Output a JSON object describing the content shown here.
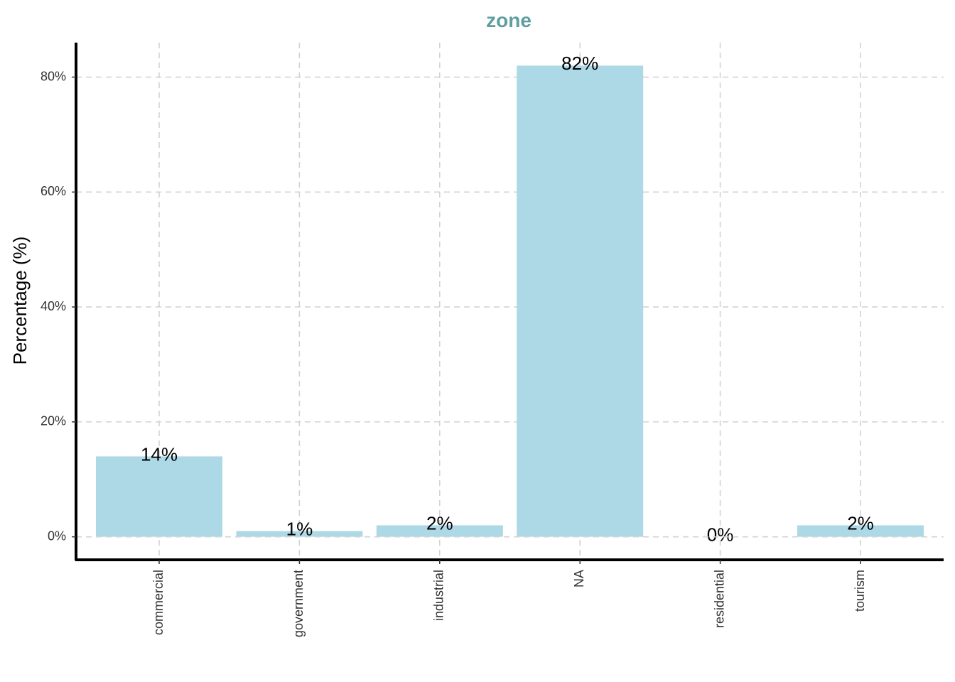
{
  "colors": {
    "bar": "#add8e6",
    "title": "#5f9ea0",
    "grid": "#d3d3d3",
    "axis": "#000000"
  },
  "chart_data": {
    "type": "bar",
    "title": "zone",
    "xlabel": "",
    "ylabel": "Percentage (%)",
    "categories": [
      "commercial",
      "government",
      "industrial",
      "NA",
      "residential",
      "tourism"
    ],
    "values": [
      14,
      1,
      2,
      82,
      0,
      2
    ],
    "data_labels": [
      "14%",
      "1%",
      "2%",
      "82%",
      "0%",
      "2%"
    ],
    "y_ticks": [
      0,
      20,
      40,
      60,
      80
    ],
    "y_tick_labels": [
      "0%",
      "20%",
      "40%",
      "60%",
      "80%"
    ],
    "ylim": [
      -4,
      86
    ],
    "grid": true,
    "legend": "none"
  }
}
